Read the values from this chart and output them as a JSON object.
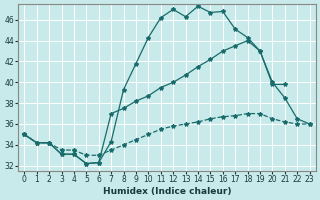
{
  "xlabel": "Humidex (Indice chaleur)",
  "ylabel": "",
  "bg_color": "#c8eaea",
  "line_color": "#1a6b6b",
  "grid_color": "#ffffff",
  "xlim": [
    -0.5,
    23.5
  ],
  "ylim": [
    31.5,
    47.5
  ],
  "xticks": [
    0,
    1,
    2,
    3,
    4,
    5,
    6,
    7,
    8,
    9,
    10,
    11,
    12,
    13,
    14,
    15,
    16,
    17,
    18,
    19,
    20,
    21,
    22,
    23
  ],
  "yticks": [
    32,
    34,
    36,
    38,
    40,
    42,
    44,
    46
  ],
  "line1_x": [
    0,
    1,
    2,
    3,
    4,
    5,
    6,
    7,
    8,
    9,
    10,
    11,
    12,
    13,
    14,
    15,
    16,
    17,
    18,
    19,
    20,
    21
  ],
  "line1_y": [
    35.0,
    34.2,
    34.2,
    33.1,
    33.1,
    32.2,
    32.3,
    34.3,
    39.3,
    41.8,
    44.3,
    46.2,
    47.0,
    46.3,
    47.3,
    46.7,
    46.8,
    45.1,
    44.3,
    43.0,
    39.8,
    39.8
  ],
  "line2_x": [
    0,
    1,
    2,
    3,
    4,
    5,
    6,
    7,
    8,
    9,
    10,
    11,
    12,
    13,
    14,
    15,
    16,
    17,
    18,
    19,
    20,
    21,
    22,
    23
  ],
  "line2_y": [
    35.0,
    34.2,
    34.2,
    33.1,
    33.1,
    32.2,
    32.3,
    37.0,
    37.5,
    38.2,
    38.7,
    39.5,
    40.0,
    40.7,
    41.5,
    42.2,
    43.0,
    43.5,
    44.0,
    43.0,
    40.0,
    38.5,
    36.5,
    36.0
  ],
  "line3_x": [
    0,
    1,
    2,
    3,
    4,
    5,
    6,
    7,
    8,
    9,
    10,
    11,
    12,
    13,
    14,
    15,
    16,
    17,
    18,
    19,
    20,
    21,
    22,
    23
  ],
  "line3_y": [
    35.0,
    34.2,
    34.2,
    33.5,
    33.5,
    33.0,
    33.0,
    33.5,
    34.0,
    34.5,
    35.0,
    35.5,
    35.8,
    36.0,
    36.2,
    36.5,
    36.7,
    36.8,
    37.0,
    37.0,
    36.5,
    36.2,
    36.0,
    36.0
  ]
}
